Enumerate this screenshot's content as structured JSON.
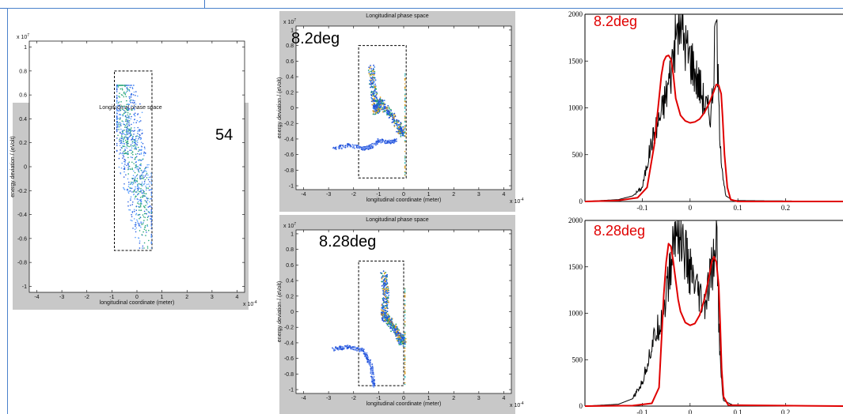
{
  "chart_data": [
    {
      "type": "scatter",
      "title": "Longitudinal phase space",
      "xlabel": "longitudinal coordinate (meter)",
      "ylabel": "energy deviation / (eVolt)",
      "x_exponent": "x 10",
      "x_exponent_power": "-4",
      "y_exponent": "x 10",
      "y_exponent_power": "7",
      "xlim": [
        -4.3,
        4.3
      ],
      "ylim": [
        -1.05,
        1.05
      ],
      "xticks": [
        "-4",
        "-3",
        "-2",
        "-1",
        "0",
        "1",
        "2",
        "3",
        "4"
      ],
      "yticks": [
        "-1",
        "-0.8",
        "-0.6",
        "-0.4",
        "-0.2",
        "0",
        "0.2",
        "0.4",
        "0.6",
        "0.8",
        "1"
      ],
      "annotation": "54",
      "box": {
        "x": [
          -0.9,
          0.6
        ],
        "y": [
          -0.7,
          0.8
        ]
      },
      "center_line": [
        [
          -0.7,
          0.6
        ],
        [
          -0.4,
          0.35
        ],
        [
          0.0,
          -0.05
        ],
        [
          0.45,
          -0.5
        ]
      ]
    },
    {
      "type": "scatter",
      "title": "Longitudinal phase space",
      "xlabel": "longitudinal coordinate (meter)",
      "ylabel": "energy deviation / (eVolt)",
      "x_exponent": "x 10",
      "x_exponent_power": "-4",
      "y_exponent": "x 10",
      "y_exponent_power": "7",
      "xlim": [
        -4.3,
        4.3
      ],
      "ylim": [
        -1.05,
        1.05
      ],
      "xticks": [
        "-4",
        "-3",
        "-2",
        "-1",
        "0",
        "1",
        "2",
        "3",
        "4"
      ],
      "yticks": [
        "-1",
        "-0.8",
        "-0.6",
        "-0.4",
        "-0.2",
        "0",
        "0.2",
        "0.4",
        "0.6",
        "0.8",
        "1"
      ],
      "annotation": "8.2deg",
      "box": {
        "x": [
          -1.8,
          0.1
        ],
        "y": [
          -0.9,
          0.8
        ]
      },
      "curve": [
        [
          -1.3,
          0.52
        ],
        [
          -1.2,
          0.2
        ],
        [
          -1.1,
          -0.05
        ],
        [
          -1.0,
          0.1
        ],
        [
          -0.6,
          -0.05
        ],
        [
          -0.2,
          -0.25
        ],
        [
          0.0,
          -0.35
        ]
      ],
      "tail": [
        [
          -2.8,
          -0.52
        ],
        [
          -2.2,
          -0.48
        ],
        [
          -1.6,
          -0.52
        ],
        [
          -1.3,
          -0.5
        ],
        [
          -1.0,
          -0.42
        ],
        [
          -0.6,
          -0.44
        ],
        [
          -0.3,
          -0.42
        ]
      ]
    },
    {
      "type": "scatter",
      "title": "Longitudinal phase space",
      "xlabel": "longitudinal coordinate (meter)",
      "ylabel": "energy deviation / (eVolt)",
      "x_exponent": "x 10",
      "x_exponent_power": "-4",
      "y_exponent": "x 10",
      "y_exponent_power": "7",
      "xlim": [
        -4.3,
        4.3
      ],
      "ylim": [
        -1.05,
        1.05
      ],
      "xticks": [
        "-4",
        "-3",
        "-2",
        "-1",
        "0",
        "1",
        "2",
        "3",
        "4"
      ],
      "yticks": [
        "-1",
        "-0.8",
        "-0.6",
        "-0.4",
        "-0.2",
        "0",
        "0.2",
        "0.4",
        "0.6",
        "0.8",
        "1"
      ],
      "annotation": "8.28deg",
      "box": {
        "x": [
          -1.8,
          0.0
        ],
        "y": [
          -0.95,
          0.65
        ]
      },
      "curve": [
        [
          -0.8,
          0.5
        ],
        [
          -0.7,
          0.2
        ],
        [
          -0.8,
          -0.05
        ],
        [
          -0.5,
          -0.15
        ],
        [
          -0.2,
          -0.3
        ],
        [
          0.0,
          -0.4
        ]
      ],
      "tail": [
        [
          -2.8,
          -0.48
        ],
        [
          -2.2,
          -0.45
        ],
        [
          -1.6,
          -0.5
        ],
        [
          -1.3,
          -0.7
        ],
        [
          -1.2,
          -0.95
        ]
      ]
    },
    {
      "type": "line",
      "annotation": "8.2deg",
      "xlim": [
        -0.22,
        0.32
      ],
      "ylim": [
        0,
        2000
      ],
      "xticks": [
        "-0.1",
        "0",
        "0.1",
        "0.2"
      ],
      "xtick_values": [
        -0.1,
        0,
        0.1,
        0.2
      ],
      "yticks": [
        "0",
        "500",
        "1000",
        "1500",
        "2000"
      ],
      "ytick_values": [
        0,
        500,
        1000,
        1500,
        2000
      ],
      "series": [
        {
          "color": "#e00000",
          "x": [
            -0.22,
            -0.15,
            -0.11,
            -0.09,
            -0.075,
            -0.065,
            -0.06,
            -0.055,
            -0.05,
            -0.045,
            -0.04,
            -0.035,
            -0.03,
            -0.02,
            -0.01,
            0.0,
            0.01,
            0.02,
            0.03,
            0.04,
            0.05,
            0.055,
            0.06,
            0.065,
            0.068,
            0.072,
            0.078,
            0.085,
            0.1,
            0.32
          ],
          "y": [
            0,
            10,
            40,
            150,
            600,
            1100,
            1350,
            1500,
            1550,
            1560,
            1520,
            1350,
            1100,
            920,
            860,
            840,
            850,
            880,
            950,
            1050,
            1180,
            1250,
            1240,
            1150,
            900,
            500,
            150,
            20,
            0,
            0
          ]
        },
        {
          "color": "#000000",
          "x": [
            -0.22,
            -0.15,
            -0.12,
            -0.1,
            -0.09,
            -0.08,
            -0.07,
            -0.06,
            -0.05,
            -0.04,
            -0.035,
            -0.03,
            -0.025,
            -0.02,
            -0.015,
            -0.01,
            -0.005,
            0.0,
            0.005,
            0.01,
            0.015,
            0.02,
            0.025,
            0.03,
            0.035,
            0.04,
            0.045,
            0.05,
            0.055,
            0.06,
            0.065,
            0.07,
            0.075,
            0.09,
            0.32
          ],
          "y": [
            0,
            20,
            60,
            150,
            400,
            650,
            800,
            950,
            1150,
            1400,
            1600,
            1750,
            1850,
            1950,
            1800,
            1700,
            1600,
            1550,
            1500,
            1400,
            1300,
            1250,
            1150,
            1050,
            1000,
            950,
            1000,
            1450,
            2000,
            1000,
            500,
            200,
            60,
            10,
            0
          ]
        }
      ]
    },
    {
      "type": "line",
      "annotation": "8.28deg",
      "xlim": [
        -0.22,
        0.32
      ],
      "ylim": [
        0,
        2000
      ],
      "xticks": [
        "-0.1",
        "0",
        "0.1",
        "0.2"
      ],
      "xtick_values": [
        -0.1,
        0,
        0.1,
        0.2
      ],
      "yticks": [
        "0",
        "500",
        "1000",
        "1500",
        "2000"
      ],
      "ytick_values": [
        0,
        500,
        1000,
        1500,
        2000
      ],
      "series": [
        {
          "color": "#e00000",
          "x": [
            -0.22,
            -0.12,
            -0.08,
            -0.065,
            -0.06,
            -0.055,
            -0.05,
            -0.045,
            -0.04,
            -0.035,
            -0.03,
            -0.025,
            -0.02,
            -0.01,
            0.0,
            0.01,
            0.02,
            0.03,
            0.04,
            0.045,
            0.05,
            0.055,
            0.06,
            0.063,
            0.066,
            0.07,
            0.08,
            0.32
          ],
          "y": [
            0,
            5,
            30,
            200,
            700,
            1200,
            1550,
            1750,
            1720,
            1550,
            1350,
            1150,
            1020,
            900,
            870,
            890,
            980,
            1150,
            1400,
            1550,
            1610,
            1550,
            1300,
            900,
            400,
            100,
            10,
            0
          ]
        },
        {
          "color": "#000000",
          "x": [
            -0.22,
            -0.15,
            -0.12,
            -0.1,
            -0.09,
            -0.08,
            -0.07,
            -0.06,
            -0.05,
            -0.04,
            -0.035,
            -0.03,
            -0.025,
            -0.02,
            -0.015,
            -0.01,
            -0.005,
            0.0,
            0.005,
            0.01,
            0.015,
            0.02,
            0.025,
            0.03,
            0.035,
            0.04,
            0.045,
            0.05,
            0.055,
            0.06,
            0.065,
            0.07,
            0.09,
            0.32
          ],
          "y": [
            0,
            20,
            80,
            250,
            450,
            650,
            800,
            950,
            1200,
            1500,
            1750,
            1850,
            1950,
            1800,
            1700,
            1650,
            1500,
            1450,
            1350,
            1250,
            1200,
            1150,
            1100,
            1050,
            1150,
            1300,
            1450,
            1550,
            2000,
            900,
            300,
            60,
            10,
            0
          ]
        }
      ]
    }
  ]
}
